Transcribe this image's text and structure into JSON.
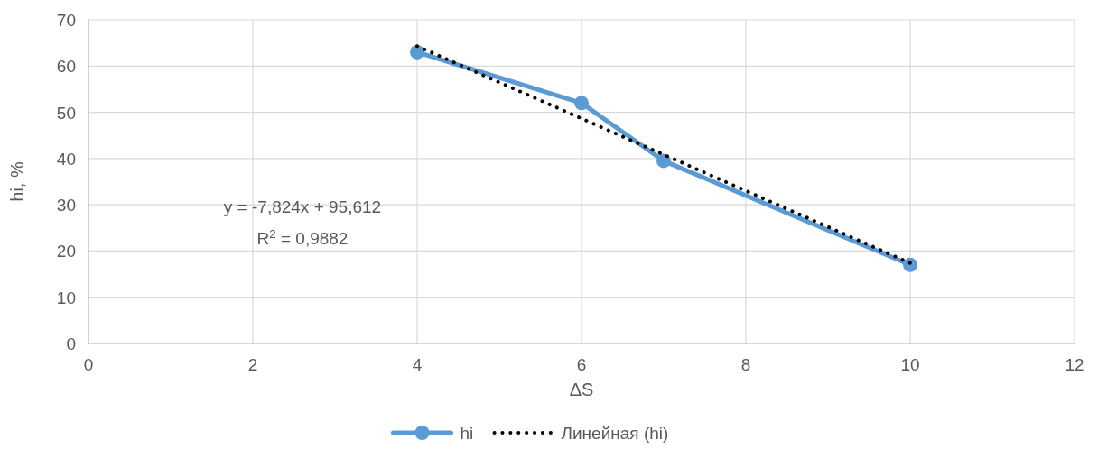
{
  "chart_data": {
    "type": "line",
    "xlabel": "ΔS",
    "ylabel": "hi, %",
    "xlim": [
      0,
      12
    ],
    "xticks": [
      0,
      2,
      4,
      6,
      8,
      10,
      12
    ],
    "ylim": [
      0,
      70
    ],
    "yticks": [
      0,
      10,
      20,
      30,
      40,
      50,
      60,
      70
    ],
    "grid": true,
    "legend": "bottom",
    "annotations": [
      "y = -7,824x + 95,612",
      "R$^{2}$ = 0,9882"
    ],
    "series": [
      {
        "name": "hi",
        "color": "#5b9bd5",
        "x": [
          4,
          6,
          7,
          10
        ],
        "values": [
          63,
          52,
          39.5,
          17
        ],
        "marker": "circle",
        "line_style": "solid"
      },
      {
        "name": "Линейная (hi)",
        "color": "#000000",
        "x": [
          4,
          10
        ],
        "values": [
          64.3,
          17.4
        ],
        "marker": "none",
        "line_style": "dotted"
      }
    ]
  }
}
